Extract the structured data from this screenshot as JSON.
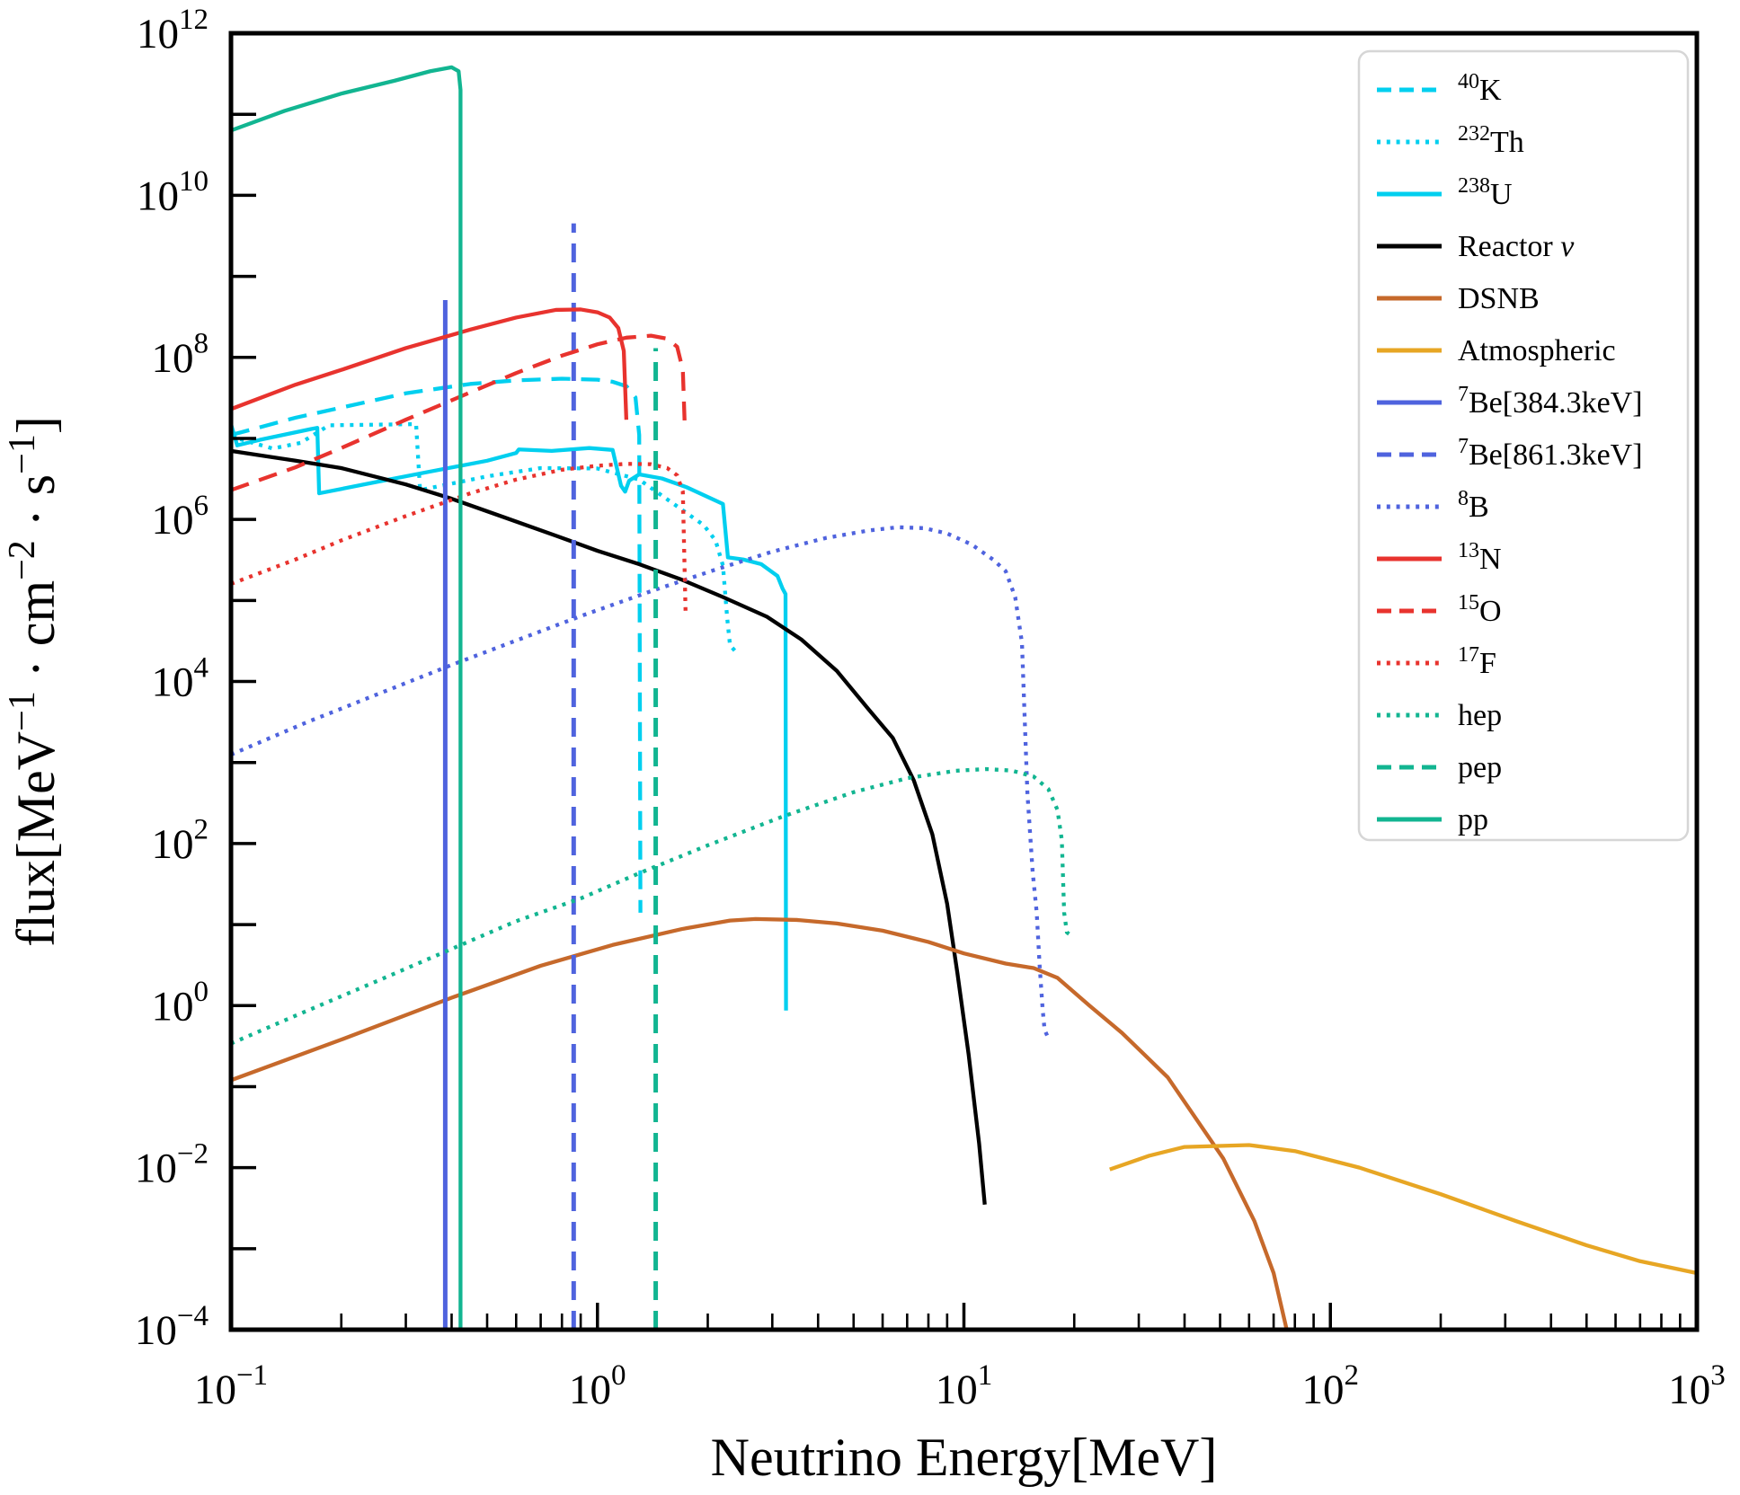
{
  "figure": {
    "background": "#ffffff",
    "spine_color": "#000000",
    "xlabel": "Neutrino Energy[MeV]",
    "ylabel_parts": [
      {
        "t": "flux[MeV"
      },
      {
        "s": "−1"
      },
      {
        "t": " · cm"
      },
      {
        "s": "−2"
      },
      {
        "t": " · s"
      },
      {
        "s": "−1"
      },
      {
        "t": "]"
      }
    ],
    "x_tick_exponents": [
      -1,
      0,
      1,
      2,
      3
    ],
    "y_tick_exponents_labeled": [
      12,
      10,
      8,
      6,
      4,
      2,
      0,
      -2,
      -4
    ],
    "y_tick_exponents_all": [
      -4,
      -3,
      -2,
      -1,
      0,
      1,
      2,
      3,
      4,
      5,
      6,
      7,
      8,
      9,
      10,
      11,
      12
    ],
    "tick_base": "10"
  },
  "chart_data": {
    "type": "line",
    "x_scale": "log",
    "y_scale": "log",
    "xlim": [
      0.1,
      1000
    ],
    "ylim": [
      0.0001,
      1000000000000.0
    ],
    "xlabel": "Neutrino Energy[MeV]",
    "ylabel": "flux[MeV-1 · cm-2 · s-1]",
    "grid": false,
    "legend_position": "upper right",
    "legend_border_color": "#d6d6d6",
    "series": [
      {
        "id": "K40",
        "label": {
          "sup": "40",
          "text": "K",
          "italic": ""
        },
        "color": "#00cfef",
        "style": "dashed",
        "points": [
          [
            0.1,
            11000000.0
          ],
          [
            0.15,
            18000000.0
          ],
          [
            0.2,
            24000000.0
          ],
          [
            0.3,
            36000000.0
          ],
          [
            0.45,
            47000000.0
          ],
          [
            0.6,
            52000000.0
          ],
          [
            0.8,
            54500000.0
          ],
          [
            1.0,
            53000000.0
          ],
          [
            1.1,
            50000000.0
          ],
          [
            1.2,
            44000000.0
          ],
          [
            1.27,
            32000000.0
          ],
          [
            1.3,
            11000000.0
          ],
          [
            1.31,
            14
          ]
        ]
      },
      {
        "id": "Th232",
        "label": {
          "sup": "232",
          "text": "Th",
          "italic": ""
        },
        "color": "#00cfef",
        "style": "dotted",
        "points": [
          [
            0.1,
            10500000.0
          ],
          [
            0.13,
            7500000.0
          ],
          [
            0.155,
            8800000.0
          ],
          [
            0.185,
            14500000.0
          ],
          [
            0.32,
            15000000.0
          ],
          [
            0.328,
            2300000.0
          ],
          [
            0.5,
            3400000.0
          ],
          [
            0.7,
            4300000.0
          ],
          [
            1.0,
            4250000.0
          ],
          [
            1.3,
            3100000.0
          ],
          [
            1.6,
            1600000.0
          ],
          [
            1.95,
            850000.0
          ],
          [
            2.1,
            550000.0
          ],
          [
            2.2,
            270000.0
          ],
          [
            2.26,
            60000.0
          ],
          [
            2.3,
            28000.0
          ],
          [
            2.37,
            24000.0
          ]
        ]
      },
      {
        "id": "U238",
        "label": {
          "sup": "238",
          "text": "U",
          "italic": ""
        },
        "color": "#00cfef",
        "style": "solid",
        "points": [
          [
            0.1,
            15000000.0
          ],
          [
            0.104,
            8200000.0
          ],
          [
            0.12,
            9600000.0
          ],
          [
            0.165,
            13000000.0
          ],
          [
            0.172,
            13500000.0
          ],
          [
            0.174,
            2100000.0
          ],
          [
            0.25,
            2900000.0
          ],
          [
            0.35,
            3900000.0
          ],
          [
            0.5,
            5300000.0
          ],
          [
            0.6,
            6600000.0
          ],
          [
            0.61,
            7300000.0
          ],
          [
            0.75,
            7000000.0
          ],
          [
            0.95,
            7600000.0
          ],
          [
            1.1,
            7200000.0
          ],
          [
            1.16,
            2600000.0
          ],
          [
            1.19,
            2200000.0
          ],
          [
            1.22,
            3000000.0
          ],
          [
            1.3,
            3600000.0
          ],
          [
            1.5,
            3200000.0
          ],
          [
            1.75,
            2500000.0
          ],
          [
            2.2,
            1550000.0
          ],
          [
            2.27,
            340000.0
          ],
          [
            2.5,
            320000.0
          ],
          [
            2.8,
            280000.0
          ],
          [
            3.1,
            200000.0
          ],
          [
            3.2,
            140000.0
          ],
          [
            3.26,
            120000.0
          ],
          [
            3.27,
            0.87
          ]
        ]
      },
      {
        "id": "Reactor",
        "label": {
          "sup": "",
          "text": "Reactor ",
          "italic": "ν"
        },
        "color": "#000000",
        "style": "solid",
        "points": [
          [
            0.1,
            7000000.0
          ],
          [
            0.15,
            5300000.0
          ],
          [
            0.2,
            4300000.0
          ],
          [
            0.3,
            2700000.0
          ],
          [
            0.4,
            1800000.0
          ],
          [
            0.56,
            1050000.0
          ],
          [
            0.77,
            630000.0
          ],
          [
            1.0,
            410000.0
          ],
          [
            1.3,
            280000.0
          ],
          [
            1.7,
            180000.0
          ],
          [
            2.2,
            110000.0
          ],
          [
            2.9,
            63000.0
          ],
          [
            3.6,
            33000.0
          ],
          [
            4.5,
            13500.0
          ],
          [
            5.5,
            4500.0
          ],
          [
            6.4,
            2000.0
          ],
          [
            7.3,
            600.0
          ],
          [
            8.2,
            130.0
          ],
          [
            9.0,
            18
          ],
          [
            9.6,
            2.5
          ],
          [
            10.3,
            0.25
          ],
          [
            11.0,
            0.02
          ],
          [
            11.4,
            0.0035
          ]
        ]
      },
      {
        "id": "DSNB",
        "label": {
          "sup": "",
          "text": "DSNB",
          "italic": ""
        },
        "color": "#c6692b",
        "style": "solid",
        "points": [
          [
            0.1,
            0.12
          ],
          [
            0.2,
            0.38
          ],
          [
            0.4,
            1.25
          ],
          [
            0.7,
            3.1
          ],
          [
            1.1,
            5.6
          ],
          [
            1.7,
            8.8
          ],
          [
            2.3,
            11.2
          ],
          [
            2.7,
            11.7
          ],
          [
            3.5,
            11.4
          ],
          [
            4.5,
            10.3
          ],
          [
            6,
            8.4
          ],
          [
            8,
            6.1
          ],
          [
            10,
            4.4
          ],
          [
            13,
            3.3
          ],
          [
            15.5,
            2.9
          ],
          [
            18,
            2.2
          ],
          [
            22,
            1.0
          ],
          [
            27,
            0.46
          ],
          [
            36,
            0.13
          ],
          [
            51,
            0.013
          ],
          [
            62,
            0.0022
          ],
          [
            70,
            0.0005
          ],
          [
            76,
            0.0001
          ]
        ]
      },
      {
        "id": "Atmospheric",
        "label": {
          "sup": "",
          "text": "Atmospheric",
          "italic": ""
        },
        "color": "#e7a624",
        "style": "solid",
        "points": [
          [
            25,
            0.0095
          ],
          [
            32,
            0.014
          ],
          [
            40,
            0.018
          ],
          [
            60,
            0.019
          ],
          [
            80,
            0.016
          ],
          [
            120,
            0.01
          ],
          [
            200,
            0.0047
          ],
          [
            320,
            0.0022
          ],
          [
            500,
            0.0011
          ],
          [
            700,
            0.0007
          ],
          [
            1000,
            0.0005
          ]
        ]
      },
      {
        "id": "Be7-384",
        "label": {
          "sup": "7",
          "text": "Be[384.3keV]",
          "italic": ""
        },
        "color": "#4f63de",
        "style": "solid",
        "points": [
          [
            0.3843,
            0.0001
          ],
          [
            0.3843,
            510000000.0
          ]
        ]
      },
      {
        "id": "Be7-861",
        "label": {
          "sup": "7",
          "text": "Be[861.3keV]",
          "italic": ""
        },
        "color": "#4f63de",
        "style": "dashed",
        "points": [
          [
            0.8613,
            0.0001
          ],
          [
            0.8613,
            4500000000.0
          ]
        ]
      },
      {
        "id": "B8",
        "label": {
          "sup": "8",
          "text": "B",
          "italic": ""
        },
        "color": "#4f63de",
        "style": "dotted",
        "points": [
          [
            0.1,
            1250.0
          ],
          [
            0.16,
            3100.0
          ],
          [
            0.25,
            6900.0
          ],
          [
            0.4,
            16000.0
          ],
          [
            0.6,
            32000.0
          ],
          [
            0.9,
            64000.0
          ],
          [
            1.4,
            130000.0
          ],
          [
            2.1,
            240000.0
          ],
          [
            3.0,
            400000.0
          ],
          [
            4.2,
            590000.0
          ],
          [
            5.5,
            730000.0
          ],
          [
            6.6,
            800000.0
          ],
          [
            7.8,
            780000.0
          ],
          [
            9.0,
            670000.0
          ],
          [
            10.5,
            490000.0
          ],
          [
            12,
            320000.0
          ],
          [
            13,
            230000.0
          ],
          [
            13.8,
            110000.0
          ],
          [
            14.4,
            30000.0
          ],
          [
            14.9,
            420
          ],
          [
            15.4,
            45
          ],
          [
            15.8,
            14
          ],
          [
            16.1,
            3
          ],
          [
            16.4,
            0.9
          ],
          [
            16.6,
            0.5
          ],
          [
            16.9,
            0.42
          ]
        ]
      },
      {
        "id": "N13",
        "label": {
          "sup": "13",
          "text": "N",
          "italic": ""
        },
        "color": "#e8332e",
        "style": "solid",
        "points": [
          [
            0.1,
            23000000.0
          ],
          [
            0.15,
            46000000.0
          ],
          [
            0.2,
            70000000.0
          ],
          [
            0.3,
            130000000.0
          ],
          [
            0.45,
            220000000.0
          ],
          [
            0.6,
            310000000.0
          ],
          [
            0.77,
            385000000.0
          ],
          [
            0.9,
            390000000.0
          ],
          [
            1.0,
            360000000.0
          ],
          [
            1.08,
            310000000.0
          ],
          [
            1.14,
            230000000.0
          ],
          [
            1.18,
            120000000.0
          ],
          [
            1.199,
            17000000.0
          ]
        ]
      },
      {
        "id": "O15",
        "label": {
          "sup": "15",
          "text": "O",
          "italic": ""
        },
        "color": "#e8332e",
        "style": "dashed",
        "points": [
          [
            0.1,
            2300000.0
          ],
          [
            0.15,
            4400000.0
          ],
          [
            0.2,
            7600000.0
          ],
          [
            0.3,
            17000000.0
          ],
          [
            0.45,
            37000000.0
          ],
          [
            0.6,
            64000000.0
          ],
          [
            0.8,
            105000000.0
          ],
          [
            1.0,
            145000000.0
          ],
          [
            1.2,
            175000000.0
          ],
          [
            1.4,
            185000000.0
          ],
          [
            1.55,
            170000000.0
          ],
          [
            1.65,
            135000000.0
          ],
          [
            1.71,
            70000000.0
          ],
          [
            1.732,
            13000000.0
          ]
        ]
      },
      {
        "id": "F17",
        "label": {
          "sup": "17",
          "text": "F",
          "italic": ""
        },
        "color": "#e8332e",
        "style": "dotted",
        "points": [
          [
            0.1,
            160000.0
          ],
          [
            0.15,
            320000.0
          ],
          [
            0.2,
            550000.0
          ],
          [
            0.3,
            1100000.0
          ],
          [
            0.45,
            2100000.0
          ],
          [
            0.6,
            3100000.0
          ],
          [
            0.8,
            4100000.0
          ],
          [
            1.0,
            4600000.0
          ],
          [
            1.2,
            4850000.0
          ],
          [
            1.4,
            4800000.0
          ],
          [
            1.55,
            4300000.0
          ],
          [
            1.65,
            3500000.0
          ],
          [
            1.71,
            2200000.0
          ],
          [
            1.74,
            70000.0
          ]
        ]
      },
      {
        "id": "hep",
        "label": {
          "sup": "",
          "text": "hep",
          "italic": ""
        },
        "color": "#12b591",
        "style": "dotted",
        "points": [
          [
            0.1,
            0.34
          ],
          [
            0.15,
            0.75
          ],
          [
            0.25,
            2.0
          ],
          [
            0.4,
            5.0
          ],
          [
            0.6,
            11
          ],
          [
            0.9,
            21
          ],
          [
            1.3,
            43
          ],
          [
            2.0,
            95
          ],
          [
            3.2,
            215
          ],
          [
            5.0,
            430
          ],
          [
            7.0,
            640
          ],
          [
            9.5,
            790
          ],
          [
            11.5,
            830
          ],
          [
            13.5,
            795
          ],
          [
            15.5,
            670
          ],
          [
            17,
            470
          ],
          [
            18,
            260
          ],
          [
            18.5,
            110
          ],
          [
            18.77,
            14
          ],
          [
            19.1,
            8
          ],
          [
            19.4,
            7.6
          ]
        ]
      },
      {
        "id": "pep",
        "label": {
          "sup": "",
          "text": "pep",
          "italic": ""
        },
        "color": "#12b591",
        "style": "dashed",
        "points": [
          [
            1.442,
            0.0001
          ],
          [
            1.442,
            130000000.0
          ]
        ]
      },
      {
        "id": "pp",
        "label": {
          "sup": "",
          "text": "pp",
          "italic": ""
        },
        "color": "#12b591",
        "style": "solid",
        "points": [
          [
            0.1,
            63000000000.0
          ],
          [
            0.14,
            110000000000.0
          ],
          [
            0.2,
            180000000000.0
          ],
          [
            0.28,
            260000000000.0
          ],
          [
            0.35,
            340000000000.0
          ],
          [
            0.4,
            380000000000.0
          ],
          [
            0.418,
            340000000000.0
          ],
          [
            0.423,
            200000000000.0
          ],
          [
            0.423,
            0.0001
          ]
        ]
      }
    ]
  }
}
